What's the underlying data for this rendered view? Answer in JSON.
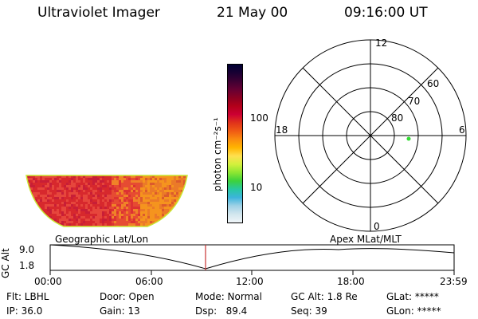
{
  "header": {
    "title": "Ultraviolet Imager",
    "date": "21 May 00",
    "time": "09:16:00 UT"
  },
  "colorbar": {
    "ticks": [
      "100",
      "10"
    ],
    "unit_label": "photon cm⁻²s⁻¹",
    "colors": [
      "#000033",
      "#1a0033",
      "#3d0033",
      "#660033",
      "#8c0022",
      "#b3001a",
      "#cc0033",
      "#e0331a",
      "#f05a14",
      "#fa8c0f",
      "#ffb400",
      "#ffe050",
      "#d2f03c",
      "#8ce632",
      "#3cd23c",
      "#28c8a0",
      "#3cb4dc",
      "#a0d2e6",
      "#d2e6ee",
      "#f0f5f8"
    ]
  },
  "polar_plot": {
    "mlt_labels": {
      "top": "12",
      "left": "18",
      "right": "6",
      "bottom": "0"
    },
    "lat_labels": [
      "60",
      "70",
      "80"
    ]
  },
  "altitude_plot": {
    "y_axis_label": "GC Alt",
    "y_ticks": [
      "9.0",
      "1.8"
    ],
    "left_title": "Geographic Lat/Lon",
    "right_title": "Apex MLat/MLT",
    "x_ticks": [
      "00:00",
      "06:00",
      "12:00",
      "18:00",
      "23:59"
    ]
  },
  "footer": {
    "row1": [
      {
        "key": "filter",
        "text": "Flt: LBHL"
      },
      {
        "key": "door",
        "text": "Door: Open"
      },
      {
        "key": "mode",
        "text": "Mode: Normal"
      },
      {
        "key": "gc_alt",
        "text": "GC Alt: 1.8 Re"
      },
      {
        "key": "glat",
        "text": "GLat: *****"
      }
    ],
    "row2": [
      {
        "key": "ip",
        "text": "IP: 36.0"
      },
      {
        "key": "gain",
        "text": "Gain: 13"
      },
      {
        "key": "dsp",
        "text": "Dsp:   89.4"
      },
      {
        "key": "seq",
        "text": "Seq: 39"
      },
      {
        "key": "glon",
        "text": "GLon: *****"
      }
    ]
  }
}
